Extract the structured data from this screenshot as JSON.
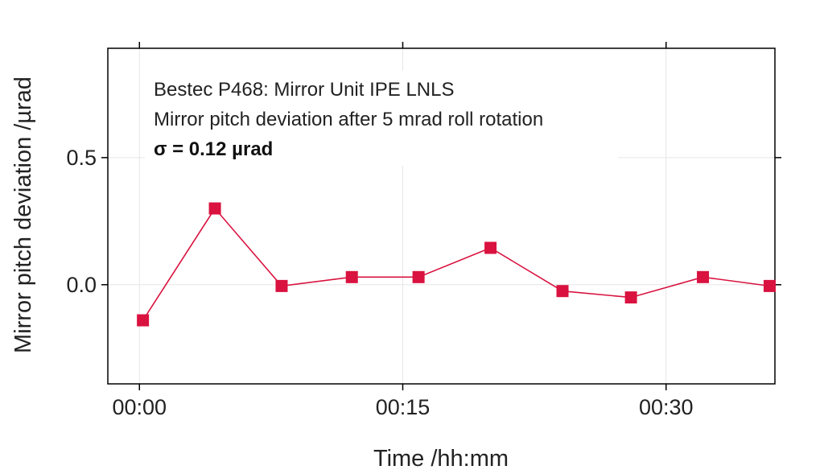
{
  "chart_data": {
    "type": "line",
    "xlabel": "Time /hh:mm",
    "ylabel": "Mirror pitch deviation /µrad",
    "x_ticks": [
      "00:00",
      "00:15",
      "00:30"
    ],
    "x_tick_minutes": [
      0,
      15,
      30
    ],
    "y_ticks": [
      "0.0",
      "0.5"
    ],
    "y_tick_values": [
      0.0,
      0.5
    ],
    "xlim_minutes": [
      -1.8,
      36.2
    ],
    "ylim": [
      -0.39,
      0.93
    ],
    "grid": true,
    "marker": "square",
    "colors": {
      "series": "#d9123f",
      "grid": "#e6e6e6",
      "frame": "#000000"
    },
    "annotations": [
      "Bestec P468: Mirror Unit IPE LNLS",
      "Mirror pitch deviation after 5 mrad roll rotation",
      "σ = 0.12 µrad"
    ],
    "series": [
      {
        "x_minutes": [
          0.2,
          4.3,
          8.1,
          12.1,
          15.9,
          20.0,
          24.1,
          28.0,
          32.1,
          35.9
        ],
        "values": [
          -0.14,
          0.3,
          -0.005,
          0.03,
          0.03,
          0.145,
          -0.025,
          -0.05,
          0.03,
          -0.005
        ]
      }
    ]
  }
}
